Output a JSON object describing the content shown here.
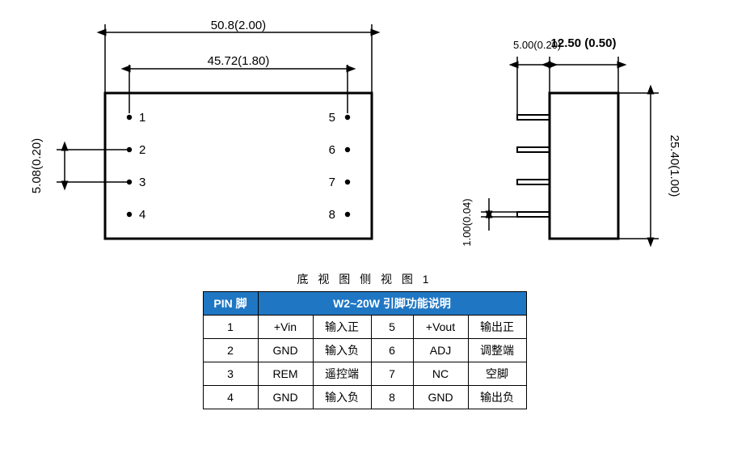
{
  "bottomView": {
    "outerDim": "50.8(2.00)",
    "innerDim": "45.72(1.80)",
    "verticalDim": "5.08(0.20)",
    "pins_left": [
      "1",
      "2",
      "3",
      "4"
    ],
    "pins_right": [
      "5",
      "6",
      "7",
      "8"
    ],
    "box_color": "#000000",
    "line_width": 2,
    "pin_radius": 3.2
  },
  "sideView": {
    "dim_small": "5.00(0.20)",
    "dim_box": "12.50  (0.50)",
    "dim_height": "25.40(1.00)",
    "dim_pin": "1.00(0.04)"
  },
  "caption": "底 视 图 侧 视 图  1",
  "table": {
    "header_pin": "PIN  脚",
    "header_desc": "W2~20W    引脚功能说明",
    "header_bg": "#1f77c4",
    "header_fg": "#ffffff",
    "rows": [
      {
        "n1": "1",
        "sym1": "+Vin",
        "d1": "输入正",
        "n2": "5",
        "sym2": "+Vout",
        "d2": "输出正"
      },
      {
        "n1": "2",
        "sym1": "GND",
        "d1": "输入负",
        "n2": "6",
        "sym2": "ADJ",
        "d2": "调整端"
      },
      {
        "n1": "3",
        "sym1": "REM",
        "d1": "遥控端",
        "n2": "7",
        "sym2": "NC",
        "d2": "空脚"
      },
      {
        "n1": "4",
        "sym1": "GND",
        "d1": "输入负",
        "n2": "8",
        "sym2": "GND",
        "d2": "输出负"
      }
    ]
  }
}
